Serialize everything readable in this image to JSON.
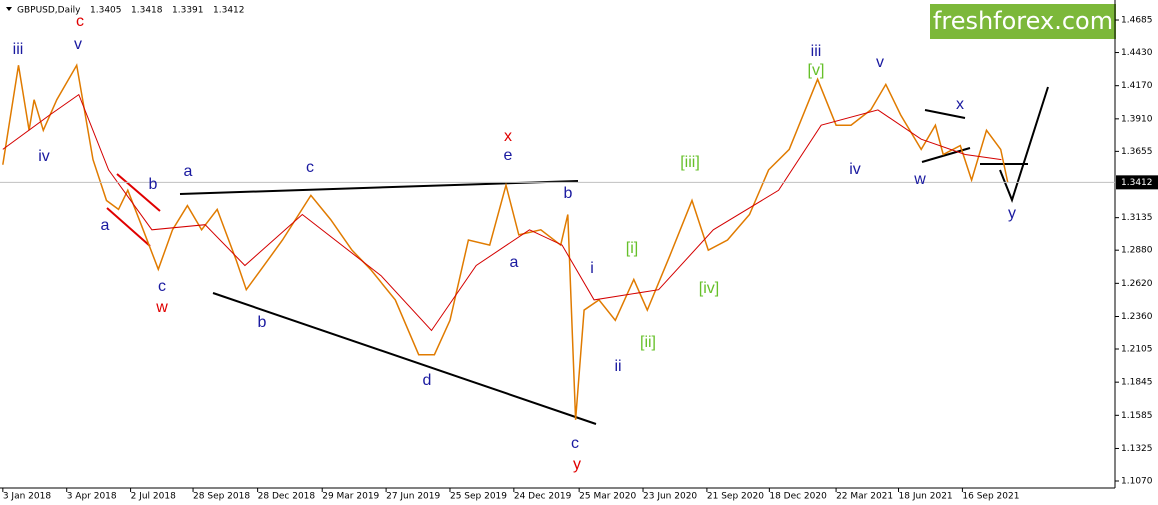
{
  "chart_data": {
    "type": "line",
    "symbol": "GBPUSD,Daily",
    "ohlc": [
      1.3405,
      1.3418,
      1.3391,
      1.3412
    ],
    "last_price": 1.3412,
    "logo": "freshforex.com",
    "logo_color": "#7cb83a",
    "xlim": [
      "2017-12-30",
      "2022-04-19"
    ],
    "ylim": [
      1.1015,
      1.4842
    ],
    "xticks": [
      {
        "value": "2018-01-03",
        "label": "3 Jan 2018"
      },
      {
        "value": "2018-04-03",
        "label": "3 Apr 2018"
      },
      {
        "value": "2018-07-02",
        "label": "2 Jul 2018"
      },
      {
        "value": "2018-09-28",
        "label": "28 Sep 2018"
      },
      {
        "value": "2018-12-28",
        "label": "28 Dec 2018"
      },
      {
        "value": "2019-03-29",
        "label": "29 Mar 2019"
      },
      {
        "value": "2019-06-27",
        "label": "27 Jun 2019"
      },
      {
        "value": "2019-09-25",
        "label": "25 Sep 2019"
      },
      {
        "value": "2019-12-24",
        "label": "24 Dec 2019"
      },
      {
        "value": "2020-03-25",
        "label": "25 Mar 2020"
      },
      {
        "value": "2020-06-23",
        "label": "23 Jun 2020"
      },
      {
        "value": "2020-09-21",
        "label": "21 Sep 2020"
      },
      {
        "value": "2020-12-18",
        "label": "18 Dec 2020"
      },
      {
        "value": "2021-03-22",
        "label": "22 Mar 2021"
      },
      {
        "value": "2021-06-18",
        "label": "18 Jun 2021"
      },
      {
        "value": "2021-09-16",
        "label": "16 Sep 2021"
      }
    ],
    "yticks": [
      1.4685,
      {
        "value": 1.443,
        "label": "1.4430"
      },
      {
        "value": 1.417,
        "label": "1.4170"
      },
      {
        "value": 1.391,
        "label": "1.3910"
      },
      1.3655,
      1.3135,
      {
        "value": 1.288,
        "label": "1.2880"
      },
      {
        "value": 1.262,
        "label": "1.2620"
      },
      {
        "value": 1.236,
        "label": "1.2360"
      },
      1.2105,
      1.1845,
      1.1585,
      1.1325,
      {
        "value": 1.107,
        "label": "1.1070"
      }
    ],
    "series": [
      {
        "color": "#e07b00",
        "x": [
          "2018-01-03",
          "2018-01-25",
          "2018-02-09",
          "2018-02-16",
          "2018-03-01",
          "2018-03-20",
          "2018-04-17",
          "2018-05-10",
          "2018-05-29",
          "2018-06-15",
          "2018-06-28",
          "2018-07-17",
          "2018-08-10",
          "2018-08-30",
          "2018-09-20",
          "2018-10-10",
          "2018-11-01",
          "2018-11-28",
          "2018-12-12",
          "2019-01-02",
          "2019-02-01",
          "2019-03-13",
          "2019-04-10",
          "2019-05-10",
          "2019-06-05",
          "2019-07-10",
          "2019-08-12",
          "2019-09-03",
          "2019-09-25",
          "2019-10-21",
          "2019-11-20",
          "2019-12-13",
          "2019-12-31",
          "2020-01-31",
          "2020-02-28",
          "2020-03-09",
          "2020-03-20",
          "2020-04-01",
          "2020-04-22",
          "2020-05-15",
          "2020-06-10",
          "2020-06-29",
          "2020-07-31",
          "2020-08-31",
          "2020-09-23",
          "2020-10-20",
          "2020-11-20",
          "2020-12-17",
          "2021-01-15",
          "2021-02-24",
          "2021-03-22",
          "2021-04-12",
          "2021-05-10",
          "2021-05-31",
          "2021-06-21",
          "2021-07-20",
          "2021-08-09",
          "2021-08-20",
          "2021-09-13",
          "2021-09-29",
          "2021-10-20",
          "2021-11-09",
          "2021-11-19"
        ],
        "values": [
          1.355,
          1.433,
          1.382,
          1.406,
          1.382,
          1.406,
          1.433,
          1.359,
          1.327,
          1.32,
          1.335,
          1.308,
          1.273,
          1.304,
          1.323,
          1.304,
          1.32,
          1.28,
          1.257,
          1.273,
          1.296,
          1.331,
          1.312,
          1.288,
          1.273,
          1.249,
          1.206,
          1.206,
          1.233,
          1.296,
          1.292,
          1.339,
          1.3,
          1.304,
          1.292,
          1.316,
          1.155,
          1.241,
          1.249,
          1.233,
          1.265,
          1.241,
          1.284,
          1.327,
          1.288,
          1.296,
          1.316,
          1.351,
          1.367,
          1.422,
          1.386,
          1.386,
          1.398,
          1.418,
          1.394,
          1.367,
          1.386,
          1.363,
          1.37,
          1.343,
          1.382,
          1.367,
          1.341
        ]
      },
      {
        "color": "#d40000",
        "x": [
          "2018-01-03",
          "2018-03-10",
          "2018-04-20",
          "2018-06-01",
          "2018-08-01",
          "2018-10-15",
          "2018-12-10",
          "2019-03-01",
          "2019-06-20",
          "2019-08-30",
          "2019-11-01",
          "2020-01-15",
          "2020-03-01",
          "2020-04-15",
          "2020-07-15",
          "2020-09-30",
          "2020-12-31",
          "2021-03-01",
          "2021-05-20",
          "2021-07-20",
          "2021-09-20",
          "2021-11-10"
        ],
        "values": [
          1.367,
          1.394,
          1.41,
          1.351,
          1.304,
          1.308,
          1.276,
          1.316,
          1.268,
          1.225,
          1.276,
          1.304,
          1.292,
          1.249,
          1.257,
          1.304,
          1.335,
          1.386,
          1.398,
          1.375,
          1.363,
          1.359
        ]
      }
    ],
    "annotations": [
      {
        "text": "iii",
        "color": "#1a1aa0"
      },
      {
        "text": "v",
        "color": "#1a1aa0"
      },
      {
        "text": "c",
        "color": "#e00000"
      },
      {
        "text": "iv",
        "color": "#1a1aa0"
      },
      {
        "text": "b",
        "color": "#1a1aa0"
      },
      {
        "text": "a",
        "color": "#1a1aa0"
      },
      {
        "text": "c",
        "color": "#1a1aa0"
      },
      {
        "text": "w",
        "color": "#e00000"
      },
      {
        "text": "a",
        "color": "#1a1aa0"
      },
      {
        "text": "b",
        "color": "#1a1aa0"
      },
      {
        "text": "c",
        "color": "#1a1aa0"
      },
      {
        "text": "d",
        "color": "#1a1aa0"
      },
      {
        "text": "x",
        "color": "#e00000"
      },
      {
        "text": "e",
        "color": "#1a1aa0"
      },
      {
        "text": "b",
        "color": "#1a1aa0"
      },
      {
        "text": "a",
        "color": "#1a1aa0"
      },
      {
        "text": "i",
        "color": "#1a1aa0"
      },
      {
        "text": "ii",
        "color": "#1a1aa0"
      },
      {
        "text": "c",
        "color": "#1a1aa0"
      },
      {
        "text": "y",
        "color": "#e00000"
      },
      {
        "text": "[i]",
        "color": "#66c02a"
      },
      {
        "text": "[ii]",
        "color": "#66c02a"
      },
      {
        "text": "[iii]",
        "color": "#66c02a"
      },
      {
        "text": "[iv]",
        "color": "#66c02a"
      },
      {
        "text": "iii",
        "color": "#1a1aa0"
      },
      {
        "text": "[v]",
        "color": "#66c02a"
      },
      {
        "text": "v",
        "color": "#1a1aa0"
      },
      {
        "text": "iv",
        "color": "#1a1aa0"
      },
      {
        "text": "w",
        "color": "#1a1aa0"
      },
      {
        "text": "x",
        "color": "#1a1aa0"
      },
      {
        "text": "y",
        "color": "#1a1aa0"
      }
    ]
  }
}
